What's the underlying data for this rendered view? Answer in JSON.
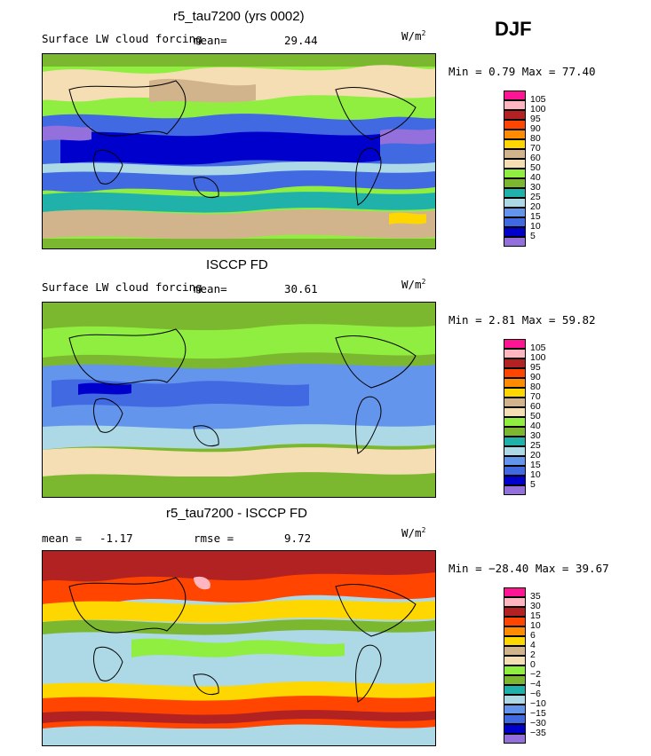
{
  "season": "DJF",
  "unit_text": "W/m",
  "unit_power": "2",
  "panels": [
    {
      "title": "r5_tau7200 (yrs 0002)",
      "subtitle": "Surface LW cloud forcing",
      "stat1_label": "mean=",
      "stat1_value": "29.44",
      "minmax": "Min =   0.79 Max =  77.40",
      "palette": "abs",
      "labels": [
        "105",
        "100",
        "95",
        "90",
        "80",
        "70",
        "60",
        "50",
        "40",
        "30",
        "25",
        "20",
        "15",
        "10",
        "5"
      ]
    },
    {
      "title": "ISCCP FD",
      "subtitle": "Surface LW cloud forcing",
      "stat1_label": "mean=",
      "stat1_value": "30.61",
      "minmax": "Min =   2.81 Max =  59.82",
      "palette": "abs",
      "labels": [
        "105",
        "100",
        "95",
        "90",
        "80",
        "70",
        "60",
        "50",
        "40",
        "30",
        "25",
        "20",
        "15",
        "10",
        "5"
      ]
    },
    {
      "title": "r5_tau7200 - ISCCP FD",
      "stat1_label": "mean =",
      "stat1_value": "-1.17",
      "stat2_label": "rmse =",
      "stat2_value": "9.72",
      "minmax": "Min = −28.40 Max =  39.67",
      "palette": "diff",
      "labels": [
        "35",
        "30",
        "15",
        "10",
        "6",
        "4",
        "2",
        "0",
        "−2",
        "−4",
        "−6",
        "−10",
        "−15",
        "−30",
        "−35"
      ]
    }
  ],
  "colors": {
    "abs": [
      "#ff1493",
      "#ffb6c1",
      "#b22222",
      "#ff4500",
      "#ff8c00",
      "#ffd700",
      "#d2b48c",
      "#f5deb3",
      "#90ee40",
      "#7cb82f",
      "#20b2aa",
      "#add8e6",
      "#6495ed",
      "#4169e1",
      "#0000cd",
      "#9370db"
    ],
    "diff": [
      "#ff1493",
      "#ffb6c1",
      "#b22222",
      "#ff4500",
      "#ff8c00",
      "#ffd700",
      "#d2b48c",
      "#f5deb3",
      "#90ee40",
      "#7cb82f",
      "#20b2aa",
      "#add8e6",
      "#6495ed",
      "#4169e1",
      "#0000cd",
      "#9370db"
    ]
  }
}
